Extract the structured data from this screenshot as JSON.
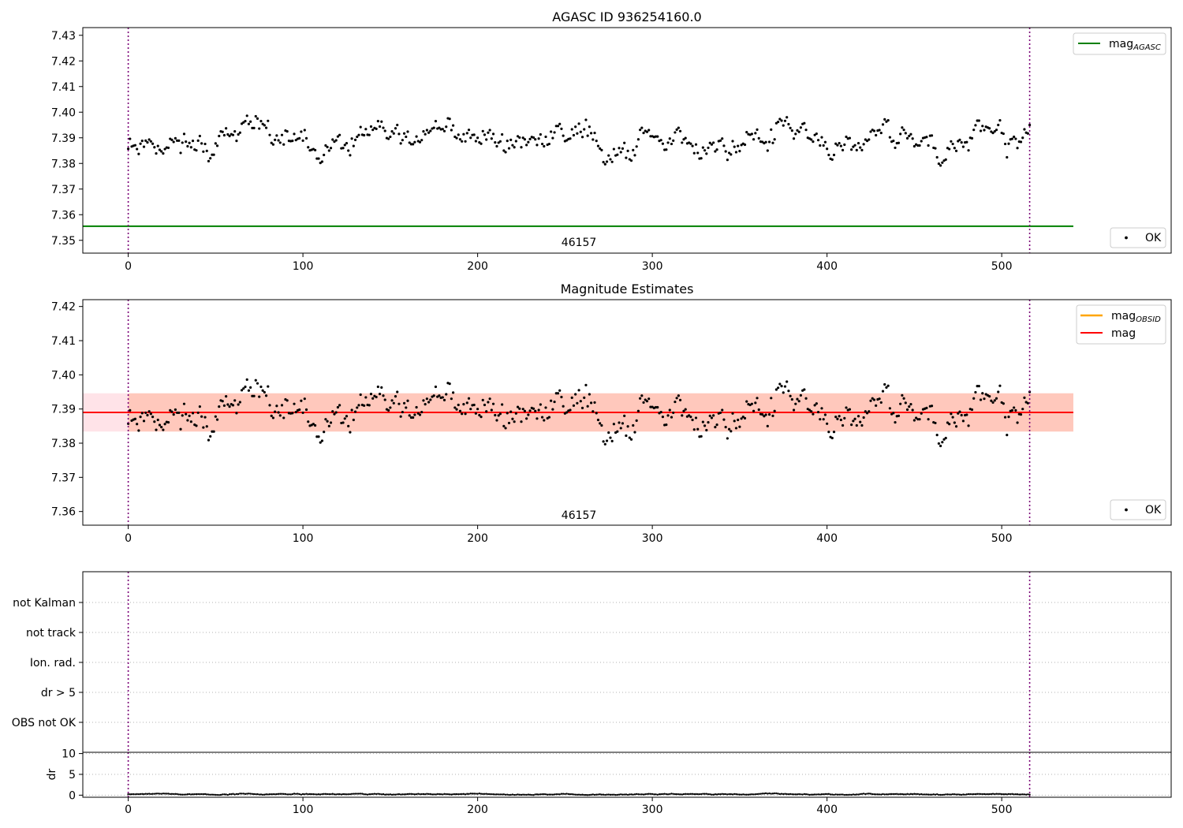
{
  "chart_data": [
    {
      "type": "scatter",
      "title": "AGASC ID 936254160.0",
      "xlim": [
        -26,
        597
      ],
      "ylim": [
        7.345,
        7.433
      ],
      "xticks": [
        0,
        100,
        200,
        300,
        400,
        500
      ],
      "xtick_labels": [
        "0",
        "100",
        "200",
        "300",
        "400",
        "500"
      ],
      "yticks": [
        7.35,
        7.36,
        7.37,
        7.38,
        7.39,
        7.4,
        7.41,
        7.42,
        7.43
      ],
      "ytick_labels": [
        "7.35",
        "7.36",
        "7.37",
        "7.38",
        "7.39",
        "7.40",
        "7.41",
        "7.42",
        "7.43"
      ],
      "vlines": [
        0,
        516
      ],
      "hlines": [
        {
          "name": "mag_AGASC",
          "y": 7.3555,
          "x": [
            -26,
            541
          ],
          "color": "#008000"
        }
      ],
      "annotation": {
        "text": "46157",
        "x": 258,
        "y": 7.3478
      },
      "legends": [
        {
          "position": "upper right",
          "entries": [
            {
              "label": "mag",
              "subscript": "AGASC",
              "kind": "line",
              "color": "#008000"
            }
          ]
        },
        {
          "position": "lower right",
          "entries": [
            {
              "label": "OK",
              "kind": "point",
              "color": "#000000"
            }
          ]
        }
      ],
      "series": [
        {
          "name": "OK",
          "point_count": 517,
          "seed": 11,
          "mean": 7.389,
          "amplitude": 0.0068,
          "noise": 0.0022,
          "color": "#000000"
        }
      ]
    },
    {
      "type": "scatter",
      "title": "Magnitude Estimates",
      "xlim": [
        -26,
        597
      ],
      "ylim": [
        7.356,
        7.422
      ],
      "xticks": [
        0,
        100,
        200,
        300,
        400,
        500
      ],
      "xtick_labels": [
        "0",
        "100",
        "200",
        "300",
        "400",
        "500"
      ],
      "yticks": [
        7.36,
        7.37,
        7.38,
        7.39,
        7.4,
        7.41,
        7.42
      ],
      "ytick_labels": [
        "7.36",
        "7.37",
        "7.38",
        "7.39",
        "7.40",
        "7.41",
        "7.42"
      ],
      "vlines": [
        0,
        516
      ],
      "bands": [
        {
          "name": "mag",
          "y": [
            7.3834,
            7.3946
          ],
          "x": [
            -26,
            541
          ],
          "color": "#ffc0cb"
        },
        {
          "name": "mag_OBSID",
          "y": [
            7.3834,
            7.3946
          ],
          "x": [
            0,
            541
          ],
          "color": "#ffa07a"
        }
      ],
      "hlines": [
        {
          "name": "mag_OBSID",
          "y": 7.389,
          "x": [
            0,
            516
          ],
          "color": "#ffa500"
        },
        {
          "name": "mag",
          "y": 7.389,
          "x": [
            -26,
            541
          ],
          "color": "#ff0000"
        }
      ],
      "annotation": {
        "text": "46157",
        "x": 258,
        "y": 7.3578
      },
      "legends": [
        {
          "position": "upper right",
          "entries": [
            {
              "label": "mag",
              "subscript": "OBSID",
              "kind": "line",
              "color": "#ffa500"
            },
            {
              "label": "mag",
              "subscript": "",
              "kind": "line",
              "color": "#ff0000"
            }
          ]
        },
        {
          "position": "lower right",
          "entries": [
            {
              "label": "OK",
              "kind": "point",
              "color": "#000000"
            }
          ]
        }
      ],
      "series": [
        {
          "name": "OK",
          "point_count": 517,
          "seed": 11,
          "mean": 7.389,
          "amplitude": 0.0068,
          "noise": 0.0022,
          "color": "#000000"
        }
      ]
    },
    {
      "type": "scatter",
      "xlim": [
        -26,
        597
      ],
      "categories": [
        "OBS not OK",
        "dr > 5",
        "Ion. rad.",
        "not track",
        "not Kalman"
      ],
      "flags": [],
      "vlines": [
        0,
        516
      ]
    },
    {
      "type": "scatter",
      "ylabel": "dr",
      "xlim": [
        -26,
        597
      ],
      "ylim": [
        -0.5,
        10.3
      ],
      "xticks": [
        0,
        100,
        200,
        300,
        400,
        500
      ],
      "xtick_labels": [
        "0",
        "100",
        "200",
        "300",
        "400",
        "500"
      ],
      "yticks": [
        0,
        5,
        10
      ],
      "ytick_labels": [
        "0",
        "5",
        "10"
      ],
      "vlines": [
        0,
        516
      ],
      "series": [
        {
          "name": "dr",
          "point_count": 517,
          "seed": 29,
          "mean": 0.22,
          "amplitude": 0.15,
          "noise": 0.05,
          "color": "#000000"
        }
      ]
    }
  ]
}
